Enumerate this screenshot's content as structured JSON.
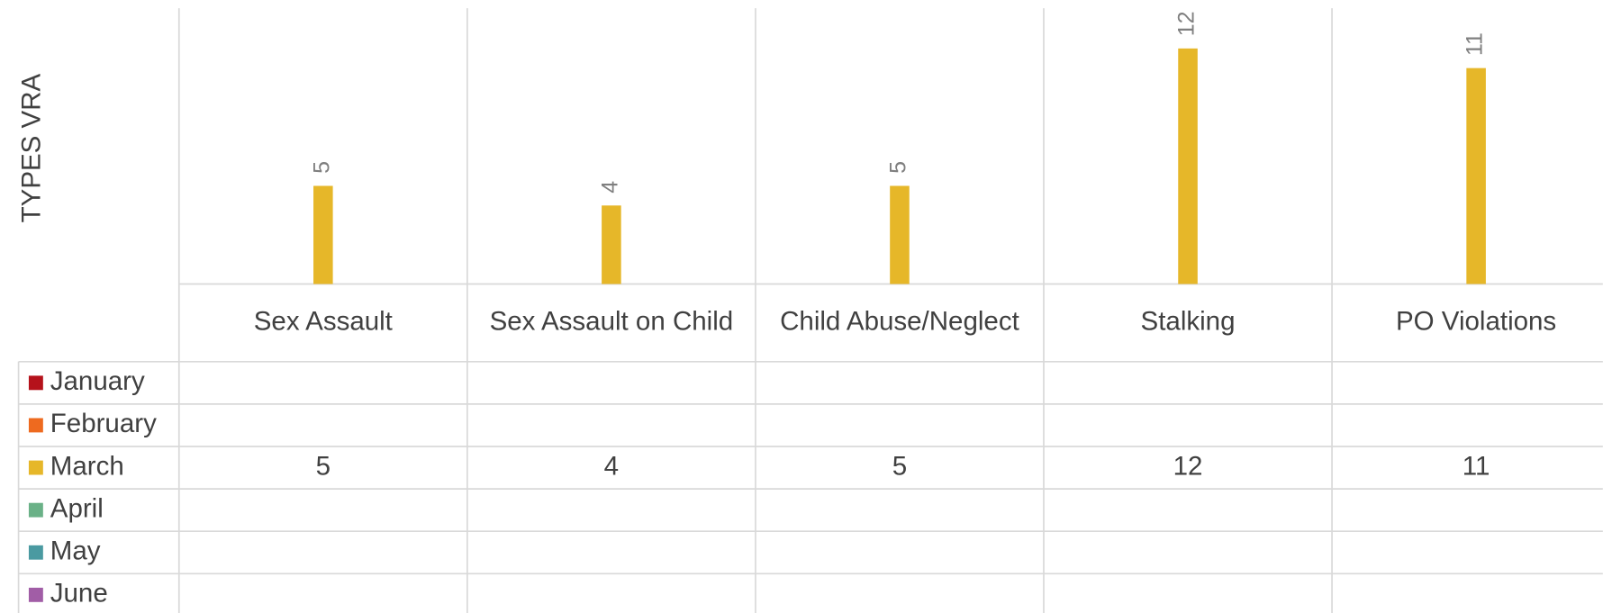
{
  "chart_data": {
    "type": "bar",
    "y_axis_label": "TYPES VRA",
    "categories": [
      "Sex Assault",
      "Sex Assault on Child",
      "Child Abuse/Neglect",
      "Stalking",
      "PO Violations"
    ],
    "series": [
      {
        "name": "January",
        "color": "#b5121b",
        "values": [
          null,
          null,
          null,
          null,
          null
        ]
      },
      {
        "name": "February",
        "color": "#ee6a1f",
        "values": [
          null,
          null,
          null,
          null,
          null
        ]
      },
      {
        "name": "March",
        "color": "#e6b729",
        "values": [
          5,
          4,
          5,
          12,
          11
        ]
      },
      {
        "name": "April",
        "color": "#6ab187",
        "values": [
          null,
          null,
          null,
          null,
          null
        ]
      },
      {
        "name": "May",
        "color": "#4a9aa1",
        "values": [
          null,
          null,
          null,
          null,
          null
        ]
      },
      {
        "name": "June",
        "color": "#a15da6",
        "values": [
          null,
          null,
          null,
          null,
          null
        ]
      }
    ],
    "ylim": [
      0,
      14
    ],
    "data_table": true
  }
}
